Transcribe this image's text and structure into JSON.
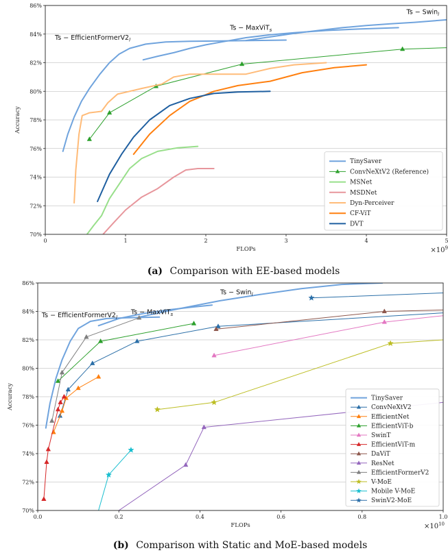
{
  "chart_data": [
    {
      "type": "line",
      "caption_tag": "(a)",
      "caption_text": "Comparison with EE-based models",
      "xlabel": "FLOPs",
      "ylabel": "Accuracy",
      "x_multiplier_label": "×10",
      "x_multiplier_exp": "9",
      "xlim": [
        0,
        5
      ],
      "ylim": [
        70,
        86
      ],
      "xticks": [
        "0",
        "1",
        "2",
        "3",
        "4",
        "5"
      ],
      "yticks": [
        "70%",
        "72%",
        "74%",
        "76%",
        "78%",
        "80%",
        "82%",
        "84%",
        "86%"
      ],
      "legend_position": "lower-right",
      "annotations": [
        {
          "text": "Ts − EfficientFormerV2",
          "sub": "l",
          "x": 0.12,
          "y": 83.6
        },
        {
          "text": "Ts − MaxViT",
          "sub": "s",
          "x": 2.3,
          "y": 84.3
        },
        {
          "text": "Ts − Swin",
          "sub": "l",
          "x": 4.5,
          "y": 85.4
        }
      ],
      "series": [
        {
          "name": "TinySaver",
          "color": "#6fa3dd",
          "marker": "none",
          "width": 2.0,
          "segments": [
            [
              [
                0.22,
                75.8
              ],
              [
                0.28,
                77.0
              ],
              [
                0.36,
                78.2
              ],
              [
                0.45,
                79.3
              ],
              [
                0.55,
                80.2
              ],
              [
                0.68,
                81.2
              ],
              [
                0.8,
                82.0
              ],
              [
                0.92,
                82.6
              ],
              [
                1.05,
                83.0
              ],
              [
                1.25,
                83.3
              ],
              [
                1.5,
                83.45
              ],
              [
                1.8,
                83.5
              ],
              [
                2.2,
                83.52
              ],
              [
                2.6,
                83.55
              ],
              [
                3.0,
                83.58
              ]
            ],
            [
              [
                1.22,
                82.2
              ],
              [
                1.4,
                82.45
              ],
              [
                1.6,
                82.7
              ],
              [
                1.8,
                83.0
              ],
              [
                2.0,
                83.25
              ],
              [
                2.2,
                83.45
              ],
              [
                2.5,
                83.75
              ],
              [
                2.8,
                83.95
              ],
              [
                3.1,
                84.1
              ],
              [
                3.5,
                84.25
              ],
              [
                3.9,
                84.35
              ],
              [
                4.4,
                84.45
              ]
            ],
            [
              [
                2.5,
                83.55
              ],
              [
                2.8,
                83.8
              ],
              [
                3.1,
                84.05
              ],
              [
                3.4,
                84.25
              ],
              [
                3.7,
                84.45
              ],
              [
                4.0,
                84.6
              ],
              [
                4.3,
                84.72
              ],
              [
                4.6,
                84.82
              ],
              [
                5.0,
                85.0
              ]
            ]
          ]
        },
        {
          "name": "ConvNeXtV2 (Reference)",
          "color": "#2ca02c",
          "marker": "triangle",
          "width": 1.0,
          "segments": [
            [
              [
                0.55,
                76.65
              ],
              [
                0.8,
                78.5
              ],
              [
                1.38,
                80.35
              ],
              [
                2.45,
                81.9
              ],
              [
                4.45,
                82.95
              ],
              [
                5.0,
                83.05
              ]
            ]
          ]
        },
        {
          "name": "MSNet",
          "color": "#98df8a",
          "marker": "none",
          "width": 2.0,
          "segments": [
            [
              [
                0.52,
                70.0
              ],
              [
                0.6,
                70.6
              ],
              [
                0.7,
                71.3
              ],
              [
                0.8,
                72.5
              ],
              [
                0.92,
                73.5
              ],
              [
                1.05,
                74.6
              ],
              [
                1.2,
                75.3
              ],
              [
                1.4,
                75.8
              ],
              [
                1.65,
                76.05
              ],
              [
                1.9,
                76.15
              ]
            ]
          ]
        },
        {
          "name": "MSDNet",
          "color": "#e7969c",
          "marker": "none",
          "width": 2.0,
          "segments": [
            [
              [
                0.72,
                70.0
              ],
              [
                0.85,
                70.8
              ],
              [
                1.0,
                71.7
              ],
              [
                1.2,
                72.6
              ],
              [
                1.4,
                73.2
              ],
              [
                1.6,
                74.0
              ],
              [
                1.75,
                74.5
              ],
              [
                1.9,
                74.6
              ],
              [
                2.1,
                74.6
              ]
            ]
          ]
        },
        {
          "name": "Dyn-Perceiver",
          "color": "#ffbb78",
          "marker": "none",
          "width": 2.0,
          "segments": [
            [
              [
                0.36,
                72.2
              ],
              [
                0.38,
                74.5
              ],
              [
                0.42,
                77.0
              ],
              [
                0.46,
                78.3
              ],
              [
                0.55,
                78.5
              ],
              [
                0.7,
                78.6
              ],
              [
                0.78,
                79.2
              ],
              [
                0.9,
                79.8
              ],
              [
                1.05,
                80.0
              ],
              [
                1.2,
                80.2
              ],
              [
                1.45,
                80.5
              ],
              [
                1.6,
                81.0
              ],
              [
                1.8,
                81.2
              ],
              [
                2.1,
                81.2
              ],
              [
                2.5,
                81.2
              ],
              [
                2.8,
                81.6
              ],
              [
                3.1,
                81.85
              ],
              [
                3.5,
                82.0
              ]
            ]
          ]
        },
        {
          "name": "CF-ViT",
          "color": "#ff7f0e",
          "marker": "none",
          "width": 2.0,
          "segments": [
            [
              [
                1.1,
                75.6
              ],
              [
                1.3,
                77.0
              ],
              [
                1.55,
                78.3
              ],
              [
                1.8,
                79.3
              ],
              [
                2.1,
                80.0
              ],
              [
                2.4,
                80.4
              ],
              [
                2.8,
                80.7
              ],
              [
                3.2,
                81.3
              ],
              [
                3.6,
                81.65
              ],
              [
                4.0,
                81.85
              ]
            ]
          ]
        },
        {
          "name": "DVT",
          "color": "#1f5fa0",
          "marker": "none",
          "width": 2.0,
          "segments": [
            [
              [
                0.65,
                72.3
              ],
              [
                0.8,
                74.2
              ],
              [
                0.95,
                75.6
              ],
              [
                1.1,
                76.8
              ],
              [
                1.3,
                78.0
              ],
              [
                1.55,
                79.0
              ],
              [
                1.8,
                79.5
              ],
              [
                2.1,
                79.85
              ],
              [
                2.4,
                79.95
              ],
              [
                2.8,
                80.0
              ]
            ]
          ]
        }
      ]
    },
    {
      "type": "line",
      "caption_tag": "(b)",
      "caption_text": "Comparison with Static and MoE-based models",
      "xlabel": "FLOPs",
      "ylabel": "Accuracy",
      "x_multiplier_label": "×10",
      "x_multiplier_exp": "10",
      "xlim": [
        0,
        1.0
      ],
      "ylim": [
        70,
        86
      ],
      "xticks": [
        "0.0",
        "0.2",
        "0.4",
        "0.6",
        "0.8",
        "1.0"
      ],
      "yticks": [
        "70%",
        "72%",
        "74%",
        "76%",
        "78%",
        "80%",
        "82%",
        "84%",
        "86%"
      ],
      "legend_position": "lower-right",
      "annotations": [
        {
          "text": "Ts − EfficientFormerV2",
          "sub": "l",
          "x": 0.01,
          "y": 83.6
        },
        {
          "text": "Ts − MaxViT",
          "sub": "s",
          "x": 0.23,
          "y": 83.8
        },
        {
          "text": "Ts − Swin",
          "sub": "l",
          "x": 0.45,
          "y": 85.2
        }
      ],
      "series": [
        {
          "name": "TinySaver",
          "color": "#6fa3dd",
          "marker": "none",
          "width": 2.0,
          "segments": [
            [
              [
                0.02,
                75.8
              ],
              [
                0.03,
                77.5
              ],
              [
                0.045,
                79.3
              ],
              [
                0.06,
                80.6
              ],
              [
                0.08,
                81.9
              ],
              [
                0.1,
                82.8
              ],
              [
                0.13,
                83.3
              ],
              [
                0.17,
                83.5
              ],
              [
                0.22,
                83.55
              ],
              [
                0.3,
                83.6
              ]
            ],
            [
              [
                0.15,
                83.0
              ],
              [
                0.2,
                83.5
              ],
              [
                0.26,
                83.85
              ],
              [
                0.32,
                84.1
              ],
              [
                0.38,
                84.3
              ],
              [
                0.43,
                84.45
              ]
            ],
            [
              [
                0.25,
                83.6
              ],
              [
                0.35,
                84.2
              ],
              [
                0.45,
                84.75
              ],
              [
                0.55,
                85.2
              ],
              [
                0.65,
                85.6
              ],
              [
                0.75,
                85.9
              ],
              [
                0.85,
                86.0
              ]
            ]
          ]
        },
        {
          "name": "ConvNeXtV2",
          "color": "#2b6fa8",
          "marker": "triangle",
          "width": 1.0,
          "segments": [
            [
              [
                0.055,
                76.65
              ],
              [
                0.075,
                78.5
              ],
              [
                0.135,
                80.35
              ],
              [
                0.245,
                81.9
              ],
              [
                0.445,
                82.95
              ],
              [
                1.0,
                83.9
              ]
            ]
          ]
        },
        {
          "name": "EfficientNet",
          "color": "#ff7f0e",
          "marker": "triangle",
          "width": 1.0,
          "segments": [
            [
              [
                0.039,
                75.5
              ],
              [
                0.06,
                77.0
              ],
              [
                0.07,
                77.9
              ],
              [
                0.1,
                78.6
              ],
              [
                0.15,
                79.4
              ]
            ]
          ]
        },
        {
          "name": "EfficientViT-b",
          "color": "#2ca02c",
          "marker": "triangle",
          "width": 1.0,
          "segments": [
            [
              [
                0.05,
                79.1
              ],
              [
                0.155,
                81.9
              ],
              [
                0.385,
                83.15
              ]
            ]
          ]
        },
        {
          "name": "SwinT",
          "color": "#e377c2",
          "marker": "triangle",
          "width": 1.0,
          "segments": [
            [
              [
                0.435,
                80.9
              ],
              [
                0.855,
                83.25
              ],
              [
                1.0,
                83.7
              ]
            ]
          ]
        },
        {
          "name": "EfficientViT-m",
          "color": "#d62728",
          "marker": "triangle",
          "width": 1.0,
          "segments": [
            [
              [
                0.015,
                70.8
              ],
              [
                0.022,
                73.4
              ],
              [
                0.026,
                74.3
              ],
              [
                0.05,
                77.1
              ],
              [
                0.056,
                77.6
              ],
              [
                0.065,
                78.0
              ]
            ]
          ]
        },
        {
          "name": "DaViT",
          "color": "#8c564b",
          "marker": "triangle",
          "width": 1.0,
          "segments": [
            [
              [
                0.44,
                82.75
              ],
              [
                0.855,
                84.0
              ],
              [
                1.0,
                84.1
              ]
            ]
          ]
        },
        {
          "name": "ResNet",
          "color": "#9467bd",
          "marker": "triangle",
          "width": 1.0,
          "segments": [
            [
              [
                0.2,
                70.0
              ],
              [
                0.365,
                73.2
              ],
              [
                0.41,
                75.85
              ],
              [
                1.0,
                77.6
              ]
            ]
          ]
        },
        {
          "name": "EfficientFormerV2",
          "color": "#7f7f7f",
          "marker": "triangle",
          "width": 1.0,
          "segments": [
            [
              [
                0.035,
                76.3
              ],
              [
                0.06,
                79.7
              ],
              [
                0.12,
                82.2
              ],
              [
                0.25,
                83.55
              ]
            ]
          ]
        },
        {
          "name": "V-MoE",
          "color": "#bcbd22",
          "marker": "star",
          "width": 1.0,
          "segments": [
            [
              [
                0.295,
                77.1
              ],
              [
                0.435,
                77.6
              ],
              [
                0.87,
                81.75
              ],
              [
                1.0,
                82.0
              ]
            ]
          ]
        },
        {
          "name": "Mobile V-MoE",
          "color": "#17becf",
          "marker": "star",
          "width": 1.0,
          "segments": [
            [
              [
                0.15,
                70.0
              ],
              [
                0.175,
                72.5
              ],
              [
                0.23,
                74.25
              ]
            ]
          ]
        },
        {
          "name": "SwinV2-MoE",
          "color": "#2b6fa8",
          "marker": "star",
          "width": 1.0,
          "segments": [
            [
              [
                0.675,
                84.95
              ],
              [
                1.0,
                85.3
              ]
            ]
          ]
        }
      ]
    }
  ]
}
